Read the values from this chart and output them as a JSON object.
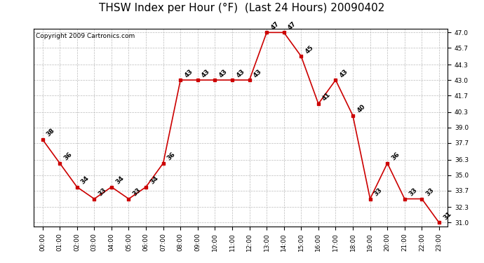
{
  "title": "THSW Index per Hour (°F)  (Last 24 Hours) 20090402",
  "copyright": "Copyright 2009 Cartronics.com",
  "hours": [
    "00:00",
    "01:00",
    "02:00",
    "03:00",
    "04:00",
    "05:00",
    "06:00",
    "07:00",
    "08:00",
    "09:00",
    "10:00",
    "11:00",
    "12:00",
    "13:00",
    "14:00",
    "15:00",
    "16:00",
    "17:00",
    "18:00",
    "19:00",
    "20:00",
    "21:00",
    "22:00",
    "23:00"
  ],
  "values": [
    38,
    36,
    34,
    33,
    34,
    33,
    34,
    36,
    43,
    43,
    43,
    43,
    43,
    47,
    47,
    45,
    41,
    43,
    40,
    33,
    36,
    33,
    33,
    31
  ],
  "line_color": "#cc0000",
  "marker_color": "#cc0000",
  "bg_color": "#ffffff",
  "grid_color": "#bbbbbb",
  "ylim_min": 31.0,
  "ylim_max": 47.0,
  "yticks": [
    31.0,
    32.3,
    33.7,
    35.0,
    36.3,
    37.7,
    39.0,
    40.3,
    41.7,
    43.0,
    44.3,
    45.7,
    47.0
  ],
  "title_fontsize": 11,
  "copyright_fontsize": 6.5,
  "label_fontsize": 6.5,
  "tick_fontsize": 6.5
}
